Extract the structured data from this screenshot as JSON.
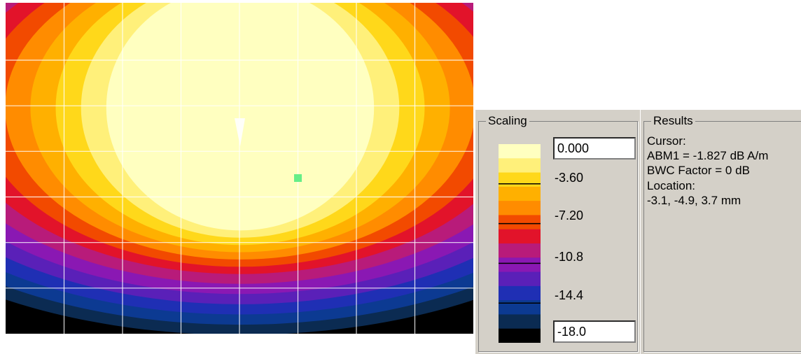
{
  "plot": {
    "levels": [
      0,
      -1.8,
      -3.6,
      -5.4,
      -7.2,
      -9.0,
      -10.8,
      -12.6,
      -14.4,
      -16.2,
      -18.0
    ],
    "colors": [
      "#ffffc0",
      "#fff07a",
      "#ffd81a",
      "#ffb000",
      "#ff8c00",
      "#f24a00",
      "#e2132a",
      "#b81b7a",
      "#8a18b3",
      "#5a20b8",
      "#1f2fb4",
      "#0c3a92",
      "#0b2b52",
      "#000000"
    ],
    "cursor_color": "#66ee88"
  },
  "scaling": {
    "title": "Scaling",
    "max_value": "0.000",
    "min_value": "-18.0",
    "tick_labels": [
      "-3.60",
      "-7.20",
      "-10.8",
      "-14.4"
    ]
  },
  "results": {
    "title": "Results",
    "lines": [
      "Cursor:",
      "ABM1 = -1.827 dB A/m",
      "BWC Factor = 0 dB",
      "Location:",
      "-3.1, -4.9, 3.7 mm"
    ]
  }
}
